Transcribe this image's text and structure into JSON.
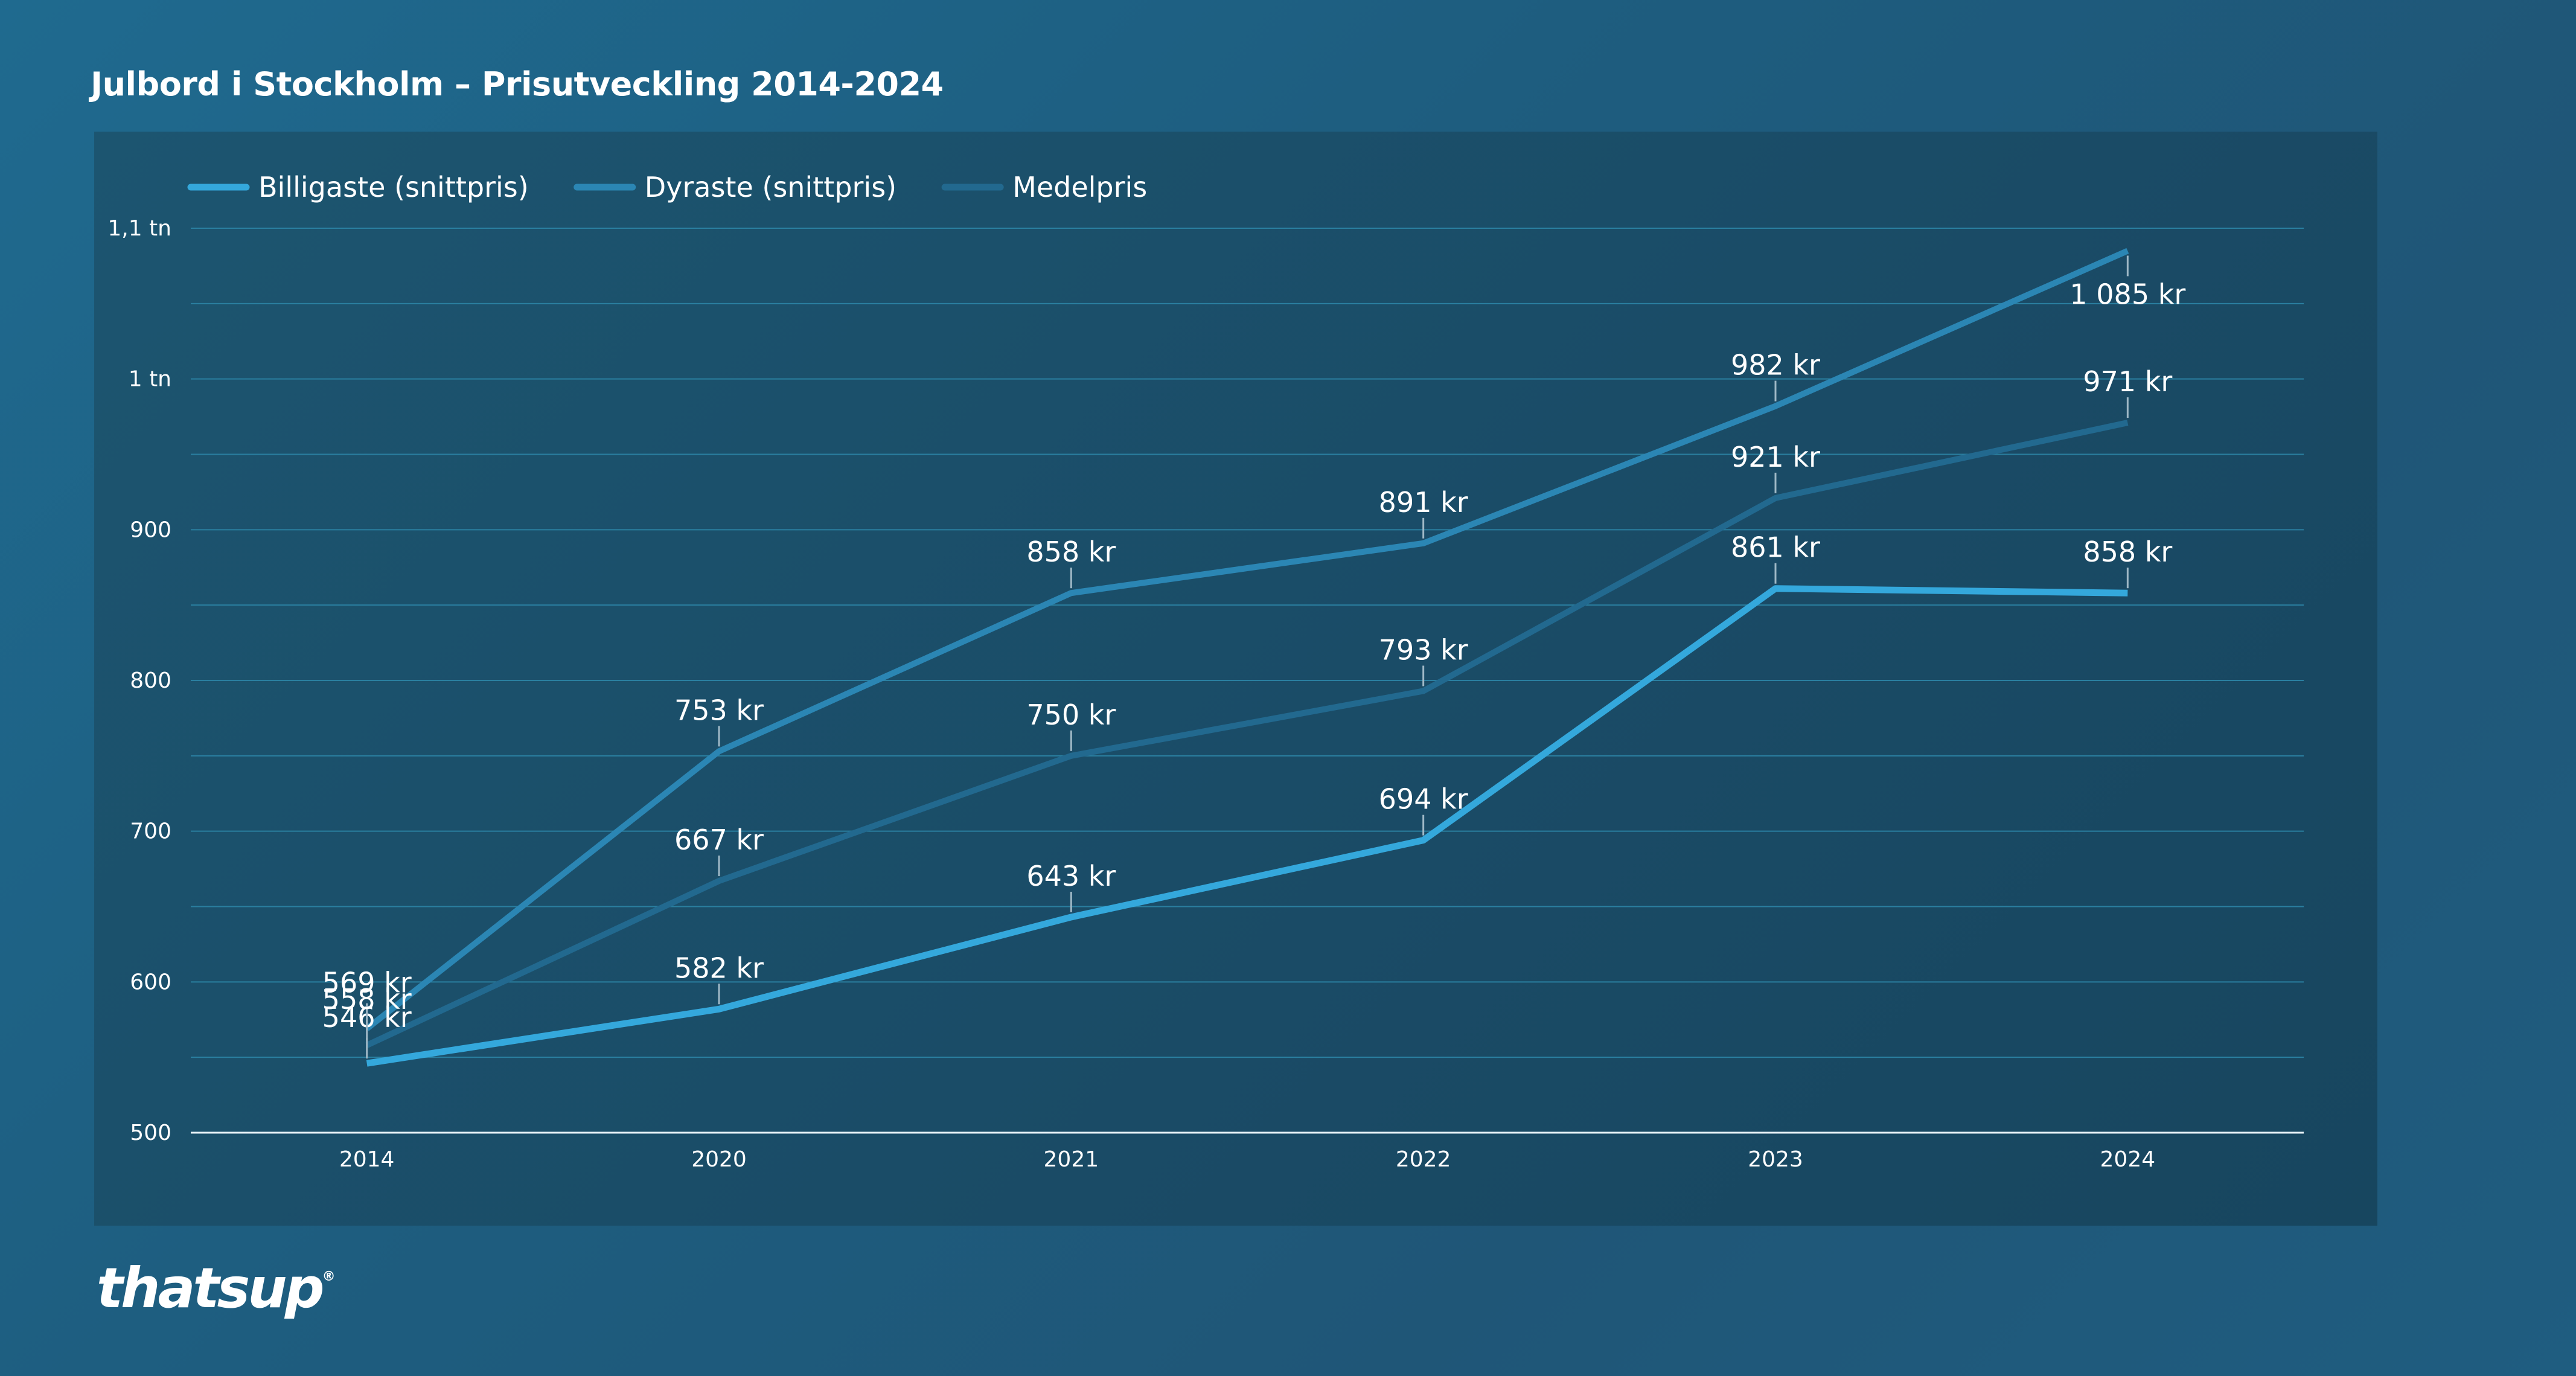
{
  "header": {
    "title": "Julbord i Stockholm – Prisutveckling 2014-2024"
  },
  "brand": {
    "logo_text": "thatsup",
    "trademark": "®"
  },
  "chart_data": {
    "type": "line",
    "title": "Julbord i Stockholm – Prisutveckling 2014-2024",
    "xlabel": "",
    "ylabel": "",
    "categories": [
      "2014",
      "2020",
      "2021",
      "2022",
      "2023",
      "2024"
    ],
    "ylim": [
      500,
      1100
    ],
    "y_ticks": [
      {
        "value": 500,
        "label": "500"
      },
      {
        "value": 600,
        "label": "600"
      },
      {
        "value": 700,
        "label": "700"
      },
      {
        "value": 800,
        "label": "800"
      },
      {
        "value": 900,
        "label": "900"
      },
      {
        "value": 1000,
        "label": "1 tn"
      },
      {
        "value": 1100,
        "label": "1,1 tn"
      }
    ],
    "grid": true,
    "legend": "top-left",
    "series": [
      {
        "name": "Billigaste (snittpris)",
        "color": "#34a8dc",
        "values": [
          546,
          582,
          643,
          694,
          861,
          858
        ],
        "labels": [
          "546 kr",
          "582 kr",
          "643 kr",
          "694 kr",
          "861 kr",
          "858 kr"
        ]
      },
      {
        "name": "Dyraste (snittpris)",
        "color": "#2b86b4",
        "values": [
          569,
          753,
          858,
          891,
          982,
          1085
        ],
        "labels": [
          "569 kr",
          "753 kr",
          "858 kr",
          "891 kr",
          "982 kr",
          "1 085 kr"
        ]
      },
      {
        "name": "Medelpris",
        "color": "#22698f",
        "values": [
          558,
          667,
          750,
          793,
          921,
          971
        ],
        "labels": [
          "558 kr",
          "667 kr",
          "750 kr",
          "793 kr",
          "921 kr",
          "971 kr"
        ]
      }
    ]
  }
}
